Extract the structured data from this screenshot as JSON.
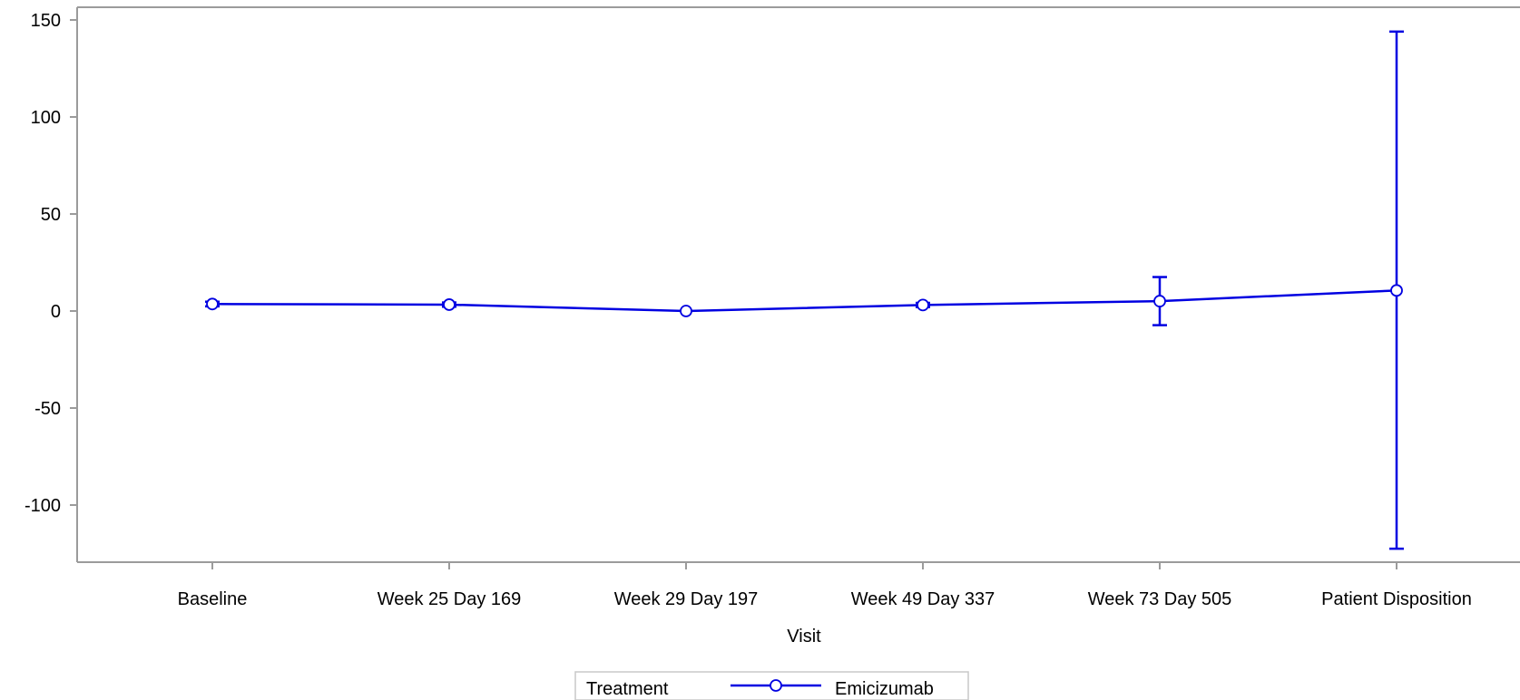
{
  "chart_data": {
    "type": "line",
    "title": "",
    "xlabel": "Visit",
    "ylabel": "",
    "categories": [
      "Baseline",
      "Week 25 Day 169",
      "Week 29 Day 197",
      "Week 49 Day 337",
      "Week 73 Day 505",
      "Patient Disposition"
    ],
    "ylim": [
      -130,
      150
    ],
    "yticks": [
      150,
      100,
      50,
      0,
      -50,
      -100
    ],
    "ytick_labels": [
      "150",
      "100",
      "50",
      "0",
      "-50",
      "-100"
    ],
    "grid": false,
    "legend_position": "bottom-center",
    "legend_title": "Treatment",
    "series": [
      {
        "name": "Emicizumab",
        "color": "#0000e1",
        "marker": "circle",
        "values": [
          3.6,
          3.3,
          0,
          3.1,
          5.1,
          10.6
        ],
        "lower": [
          2.4,
          2.2,
          0,
          2.0,
          -7.3,
          -122.5
        ],
        "upper": [
          4.8,
          4.4,
          0,
          4.2,
          17.5,
          144.0
        ]
      }
    ]
  }
}
